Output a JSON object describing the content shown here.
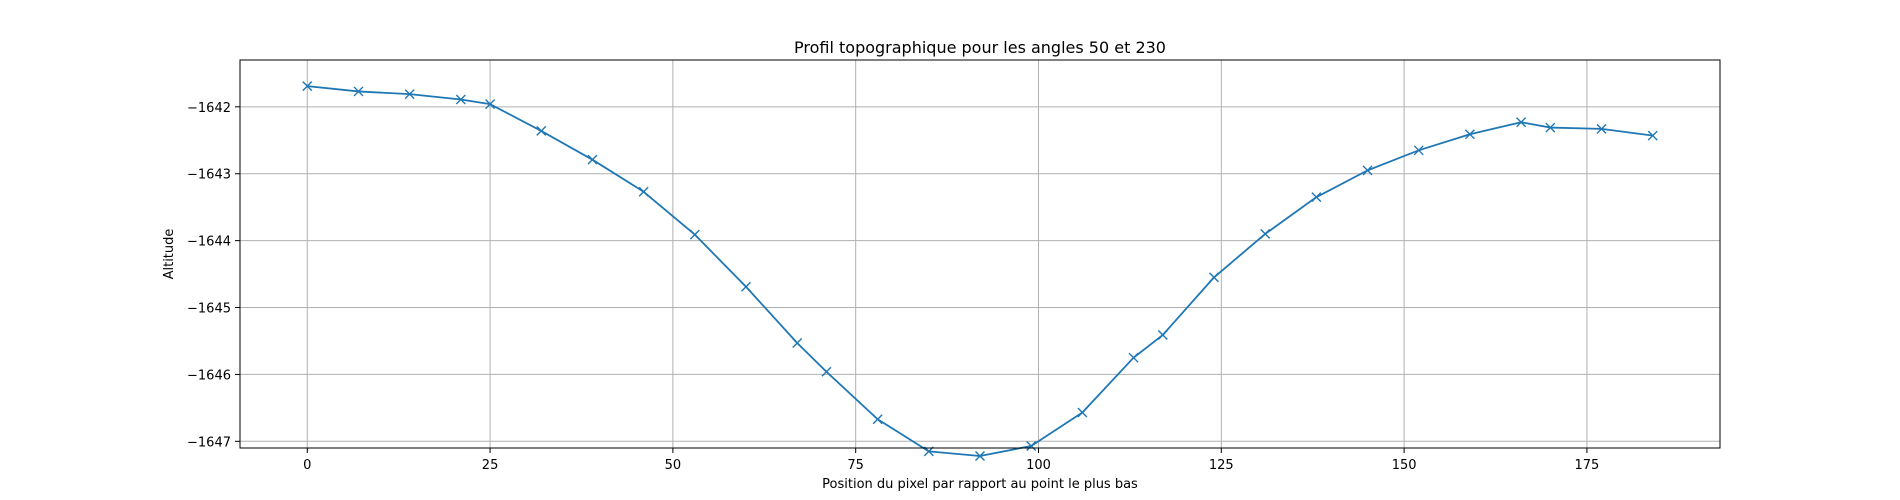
{
  "chart_data": {
    "type": "line",
    "title": "Profil topographique pour les angles 50 et 230",
    "xlabel": "Position du pixel par rapport au point le plus bas",
    "ylabel": "Altitude",
    "xlim": [
      -9.2,
      193.2
    ],
    "ylim": [
      -1647.1,
      -1641.3
    ],
    "x_ticks": [
      0,
      25,
      50,
      75,
      100,
      125,
      150,
      175
    ],
    "x_tick_labels": [
      "0",
      "25",
      "50",
      "75",
      "100",
      "125",
      "150",
      "175"
    ],
    "y_ticks": [
      -1642,
      -1643,
      -1644,
      -1645,
      -1646,
      -1647
    ],
    "y_tick_labels": [
      "−1642",
      "−1643",
      "−1644",
      "−1645",
      "−1646",
      "−1647"
    ],
    "grid": true,
    "colors": {
      "line": "#1f77b4",
      "grid": "#b0b0b0",
      "axis": "#000000"
    },
    "marker": "x",
    "series": [
      {
        "x": [
          0,
          7,
          14,
          21,
          25,
          32,
          39,
          46,
          53,
          60,
          67,
          71,
          78,
          85,
          92,
          99,
          106,
          113,
          117,
          124,
          131,
          138,
          145,
          152,
          159,
          166,
          170,
          177,
          184
        ],
        "y": [
          -1641.69,
          -1641.77,
          -1641.81,
          -1641.89,
          -1641.96,
          -1642.36,
          -1642.79,
          -1643.27,
          -1643.91,
          -1644.69,
          -1645.53,
          -1645.96,
          -1646.67,
          -1647.15,
          -1647.22,
          -1647.07,
          -1646.57,
          -1645.75,
          -1645.41,
          -1644.55,
          -1643.9,
          -1643.35,
          -1642.95,
          -1642.65,
          -1642.41,
          -1642.23,
          -1642.31,
          -1642.33,
          -1642.43
        ]
      }
    ]
  }
}
